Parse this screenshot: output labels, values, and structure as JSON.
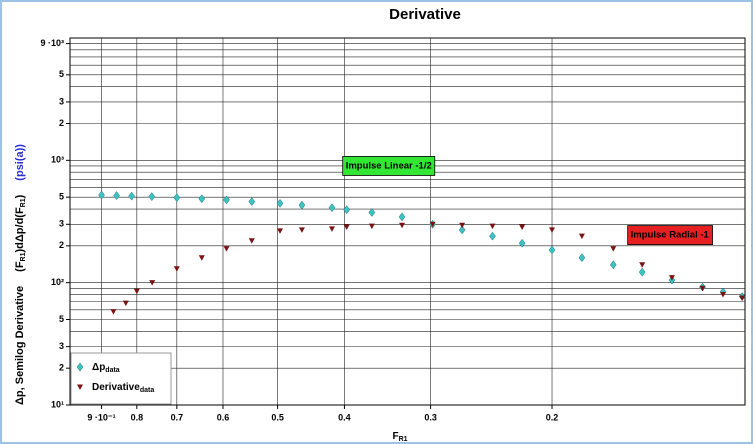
{
  "chart_data": {
    "type": "scatter",
    "title": "Derivative",
    "xlabel": "F",
    "xlabel_sub": "R1",
    "ylabel": [
      "Δp, Semilog Derivative",
      "(F",
      "R1",
      ")dΔp/d(F",
      "R1",
      ")",
      "(psi(a))"
    ],
    "xscale": "log",
    "yscale": "log",
    "x_reversed": true,
    "xlim": [
      1,
      0.105
    ],
    "ylim": [
      10,
      10000
    ],
    "xticks": [
      {
        "value": 0.9,
        "label": "9 ·10⁻¹"
      },
      0.8,
      0.7,
      0.6,
      0.5,
      0.4,
      0.3,
      0.2
    ],
    "xgrid": [
      0.9,
      0.8,
      0.7,
      0.6,
      0.5,
      0.4,
      0.3,
      0.2
    ],
    "yticks": [
      {
        "value": 10,
        "label": "10¹"
      },
      2,
      3,
      5,
      {
        "value": 100,
        "label": "10²"
      },
      2,
      3,
      5,
      {
        "value": 1000,
        "label": "10³"
      },
      2,
      3,
      5,
      {
        "value": 9000,
        "label": "9 ·10³"
      }
    ],
    "ytick_values": [
      10,
      20,
      30,
      50,
      100,
      200,
      300,
      500,
      1000,
      2000,
      3000,
      5000,
      9000
    ],
    "ygrid": [
      20,
      30,
      40,
      50,
      60,
      70,
      80,
      90,
      100,
      200,
      300,
      400,
      500,
      600,
      700,
      800,
      900,
      1000,
      2000,
      3000,
      4000,
      5000,
      6000,
      7000,
      8000,
      9000
    ],
    "grid": true,
    "legend": "lower left",
    "series": [
      {
        "name": "Δp",
        "name_sub": "data",
        "color": "#3cc4c4",
        "marker": "diamond",
        "x": [
          0.9,
          0.856,
          0.814,
          0.761,
          0.7,
          0.644,
          0.593,
          0.545,
          0.496,
          0.461,
          0.417,
          0.397,
          0.365,
          0.33,
          0.298,
          0.27,
          0.244,
          0.221,
          0.2,
          0.181,
          0.163,
          0.148,
          0.134,
          0.121,
          0.113,
          0.106
        ],
        "values": [
          520,
          515,
          510,
          505,
          495,
          485,
          475,
          460,
          445,
          430,
          410,
          395,
          375,
          345,
          300,
          270,
          240,
          210,
          185,
          160,
          140,
          122,
          105,
          92,
          84,
          77
        ]
      },
      {
        "name": "Derivative",
        "name_sub": "data",
        "color": "#7a1414",
        "marker": "triangle-down",
        "x": [
          0.865,
          0.83,
          0.8,
          0.76,
          0.7,
          0.644,
          0.593,
          0.545,
          0.496,
          0.461,
          0.417,
          0.397,
          0.365,
          0.33,
          0.298,
          0.27,
          0.244,
          0.221,
          0.2,
          0.181,
          0.163,
          0.148,
          0.134,
          0.121,
          0.113,
          0.106
        ],
        "values": [
          58,
          68,
          85,
          100,
          130,
          160,
          190,
          220,
          265,
          270,
          275,
          285,
          290,
          295,
          300,
          295,
          290,
          285,
          270,
          240,
          190,
          140,
          110,
          90,
          80,
          75
        ]
      }
    ],
    "annotations": [
      {
        "text": "Impulse Linear -1/2",
        "x": 0.345,
        "y": 900,
        "color": "#33e633"
      },
      {
        "text": "Impulse Radial -1",
        "x": 0.135,
        "y": 245,
        "color": "#e62020"
      }
    ]
  }
}
